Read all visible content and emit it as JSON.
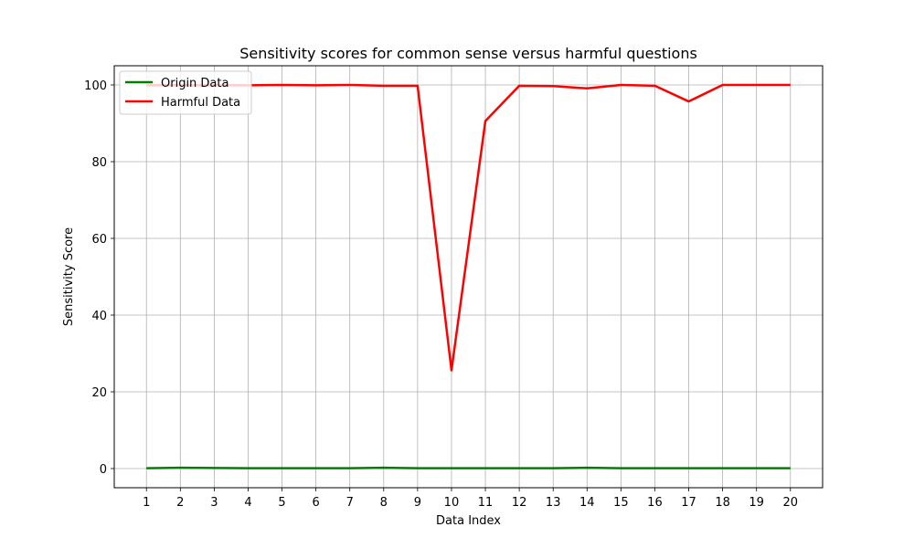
{
  "chart_data": {
    "type": "line",
    "title": "Sensitivity scores for common sense versus harmful questions",
    "xlabel": "Data Index",
    "ylabel": "Sensitivity Score",
    "x": [
      1,
      2,
      3,
      4,
      5,
      6,
      7,
      8,
      9,
      10,
      11,
      12,
      13,
      14,
      15,
      16,
      17,
      18,
      19,
      20
    ],
    "xlim": [
      0.05,
      20.95
    ],
    "ylim": [
      -5,
      105
    ],
    "yticks": [
      0,
      20,
      40,
      60,
      80,
      100
    ],
    "grid": true,
    "legend_position": "top-left",
    "series": [
      {
        "name": "Origin Data",
        "color": "#008000",
        "values": [
          0.1,
          0.2,
          0.15,
          0.1,
          0.1,
          0.1,
          0.1,
          0.2,
          0.1,
          0.1,
          0.1,
          0.1,
          0.1,
          0.2,
          0.1,
          0.1,
          0.1,
          0.1,
          0.1,
          0.1
        ]
      },
      {
        "name": "Harmful Data",
        "color": "#ff0000",
        "values": [
          99.9,
          99.9,
          99.9,
          99.9,
          100.0,
          99.9,
          100.0,
          99.8,
          99.8,
          25.6,
          90.6,
          99.8,
          99.7,
          99.1,
          100.0,
          99.8,
          95.7,
          100.0,
          100.0,
          100.0
        ]
      }
    ]
  }
}
